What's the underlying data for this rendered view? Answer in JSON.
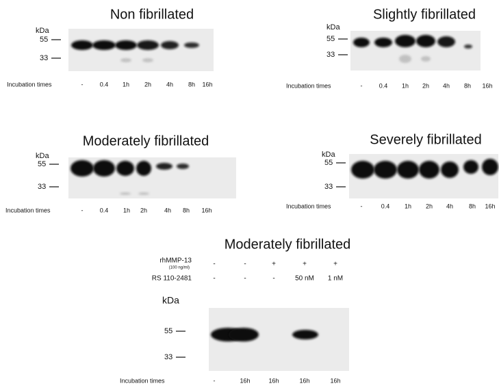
{
  "panels": [
    {
      "title": "Non fibrillated",
      "unit": "kDa",
      "markers": [
        "55",
        "33"
      ],
      "row_label": "Incubation times",
      "lanes": [
        "-",
        "0.4",
        "1h",
        "2h",
        "4h",
        "8h",
        "16h"
      ]
    },
    {
      "title": "Slightly fibrillated",
      "unit": "kDa",
      "markers": [
        "55",
        "33"
      ],
      "row_label": "Incubation times",
      "lanes": [
        "-",
        "0.4",
        "1h",
        "2h",
        "4h",
        "8h",
        "16h"
      ]
    },
    {
      "title": "Moderately fibrillated",
      "unit": "kDa",
      "markers": [
        "55",
        "33"
      ],
      "row_label": "Incubation times",
      "lanes": [
        "-",
        "0.4",
        "1h",
        "2h",
        "4h",
        "8h",
        "16h"
      ]
    },
    {
      "title": "Severely fibrillated",
      "unit": "kDa",
      "markers": [
        "55",
        "33"
      ],
      "row_label": "Incubation times",
      "lanes": [
        "-",
        "0.4",
        "1h",
        "2h",
        "4h",
        "8h",
        "16h"
      ]
    },
    {
      "title": "Moderately fibrillated",
      "treatments": [
        {
          "label": "rhMMP-13",
          "sublabel": "(100 ng/ml)",
          "values": [
            "-",
            "-",
            "+",
            "+",
            "+"
          ]
        },
        {
          "label": "RS 110-2481",
          "values": [
            "-",
            "-",
            "-",
            "50 nM",
            "1 nM"
          ]
        }
      ],
      "unit": "kDa",
      "markers": [
        "55",
        "33"
      ],
      "row_label": "Incubation times",
      "lanes": [
        "-",
        "16h",
        "16h",
        "16h",
        "16h"
      ]
    }
  ]
}
